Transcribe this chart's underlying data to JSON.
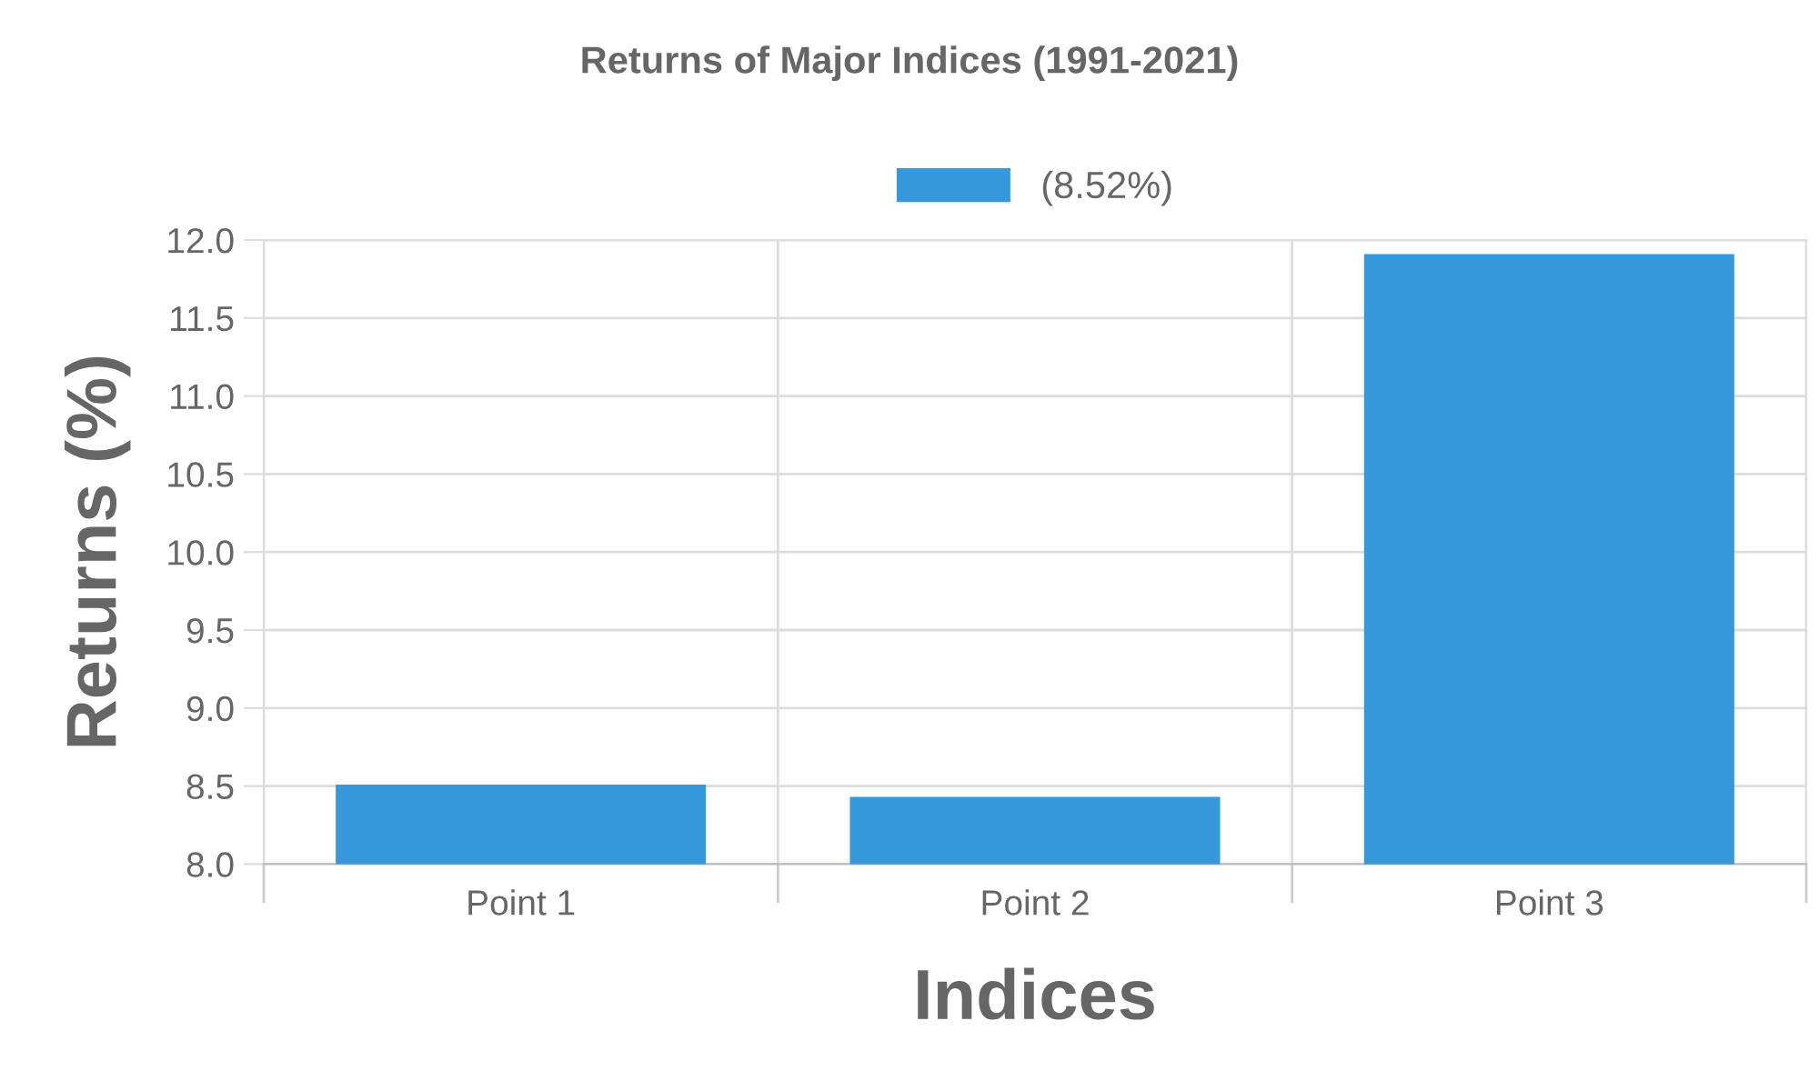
{
  "chart_data": {
    "type": "bar",
    "title": "Returns of Major Indices (1991-2021)",
    "xlabel": "Indices",
    "ylabel": "Returns (%)",
    "categories": [
      "Point 1",
      "Point 2",
      "Point 3"
    ],
    "series": [
      {
        "name": "(8.52%)",
        "color": "#3498db",
        "values": [
          8.51,
          8.43,
          11.91
        ]
      }
    ],
    "ylim": [
      8.0,
      12.0
    ],
    "yticks": [
      {
        "value": 8.0,
        "label": "8.0"
      },
      {
        "value": 8.5,
        "label": "8.5"
      },
      {
        "value": 9.0,
        "label": "9.0"
      },
      {
        "value": 9.5,
        "label": "9.5"
      },
      {
        "value": 10.0,
        "label": "10.0"
      },
      {
        "value": 10.5,
        "label": "10.5"
      },
      {
        "value": 11.0,
        "label": "11.0"
      },
      {
        "value": 11.5,
        "label": "11.5"
      },
      {
        "value": 12.0,
        "label": "12.0"
      }
    ],
    "grid": true,
    "legend": "top"
  }
}
